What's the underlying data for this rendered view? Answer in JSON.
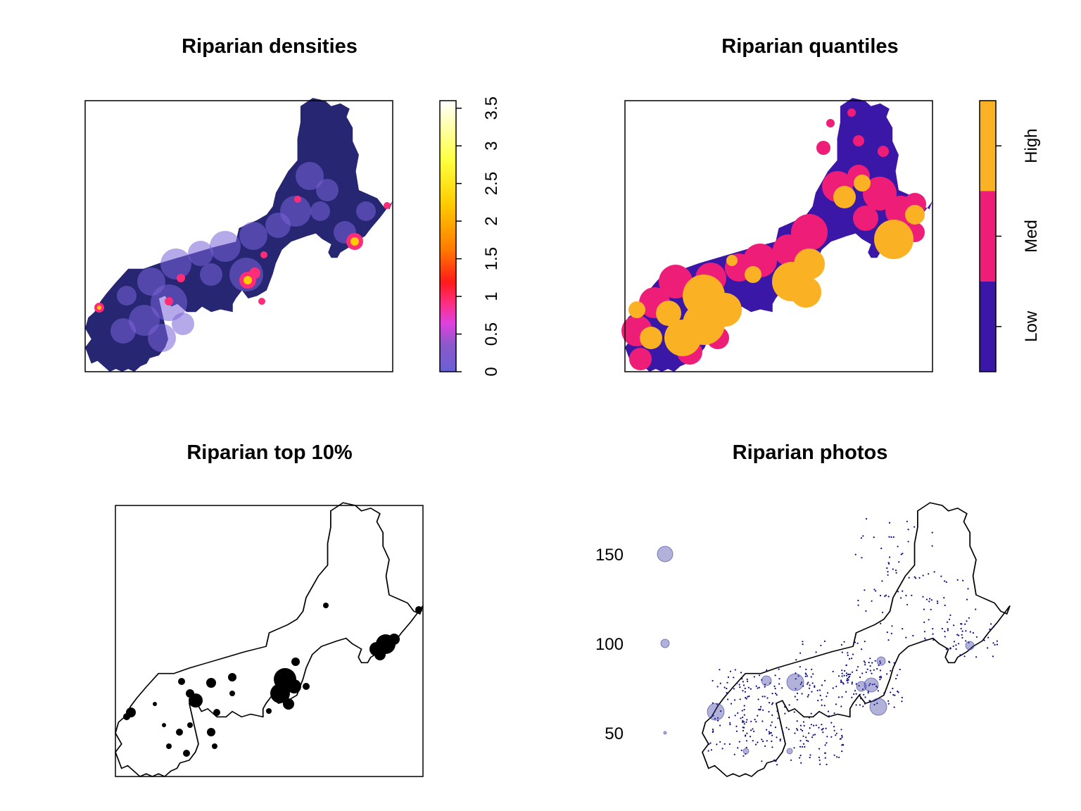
{
  "panels": {
    "densities": {
      "title": "Riparian densities",
      "legend": {
        "type": "continuous",
        "ticks": [
          "0",
          "0.5",
          "1",
          "1.5",
          "2",
          "2.5",
          "3",
          "3.5"
        ],
        "range": [
          0,
          3.6
        ],
        "colors": [
          "#6a5fd6",
          "#8a59c8",
          "#e040e0",
          "#ff2c78",
          "#ff1a1a",
          "#ff7a00",
          "#ffcc00",
          "#ffff40",
          "#ffffff"
        ]
      },
      "background_color": "#262673"
    },
    "quantiles": {
      "title": "Riparian quantiles",
      "legend": {
        "type": "categorical",
        "classes": [
          {
            "label": "Low",
            "color": "#3b17a8"
          },
          {
            "label": "Med",
            "color": "#ee1e78"
          },
          {
            "label": "High",
            "color": "#fbb124"
          }
        ]
      }
    },
    "top10": {
      "title": "Riparian top 10%",
      "fill_color": "#000000"
    },
    "photos": {
      "title": "Riparian photos",
      "legend": {
        "labels": [
          "150",
          "100",
          "50"
        ],
        "values": [
          150,
          100,
          50
        ]
      },
      "point_color": "#0a0a80",
      "bubble_color": "#3c3ca0"
    }
  }
}
